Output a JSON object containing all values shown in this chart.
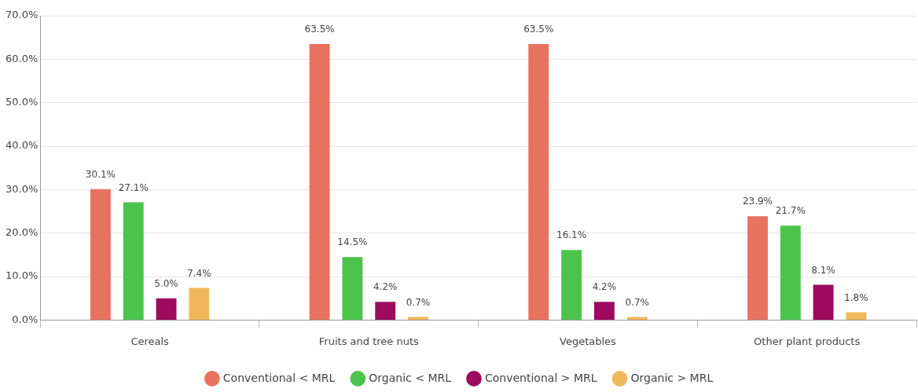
{
  "chart_data": {
    "type": "bar",
    "categories": [
      "Cereals",
      "Fruits and tree nuts",
      "Vegetables",
      "Other plant products"
    ],
    "series": [
      {
        "name": "Conventional < MRL",
        "color": "#e8735f",
        "values": [
          30.1,
          63.5,
          63.5,
          23.9
        ],
        "value_labels": [
          "30.1%",
          "63.5%",
          "63.5%",
          "23.9%"
        ]
      },
      {
        "name": "Organic < MRL",
        "color": "#4cc44c",
        "values": [
          27.1,
          14.5,
          16.1,
          21.7
        ],
        "value_labels": [
          "27.1%",
          "14.5%",
          "16.1%",
          "21.7%"
        ]
      },
      {
        "name": "Conventional > MRL",
        "color": "#9c0b5e",
        "values": [
          5.0,
          4.2,
          4.2,
          8.1
        ],
        "value_labels": [
          "5.0%",
          "4.2%",
          "4.2%",
          "8.1%"
        ]
      },
      {
        "name": "Organic > MRL",
        "color": "#f0b85a",
        "values": [
          7.4,
          0.7,
          0.7,
          1.8
        ],
        "value_labels": [
          "7.4%",
          "0.7%",
          "0.7%",
          "1.8%"
        ]
      }
    ],
    "ylim": [
      0,
      70
    ],
    "yticks": [
      {
        "value": 0,
        "label": "0.0%"
      },
      {
        "value": 10,
        "label": "10.0%"
      },
      {
        "value": 20,
        "label": "20.0%"
      },
      {
        "value": 30,
        "label": "30.0%"
      },
      {
        "value": 40,
        "label": "40.0%"
      },
      {
        "value": 50,
        "label": "50.0%"
      },
      {
        "value": 60,
        "label": "60.0%"
      },
      {
        "value": 70,
        "label": "70.0%"
      }
    ],
    "grid": "y",
    "legend": "bottom"
  }
}
